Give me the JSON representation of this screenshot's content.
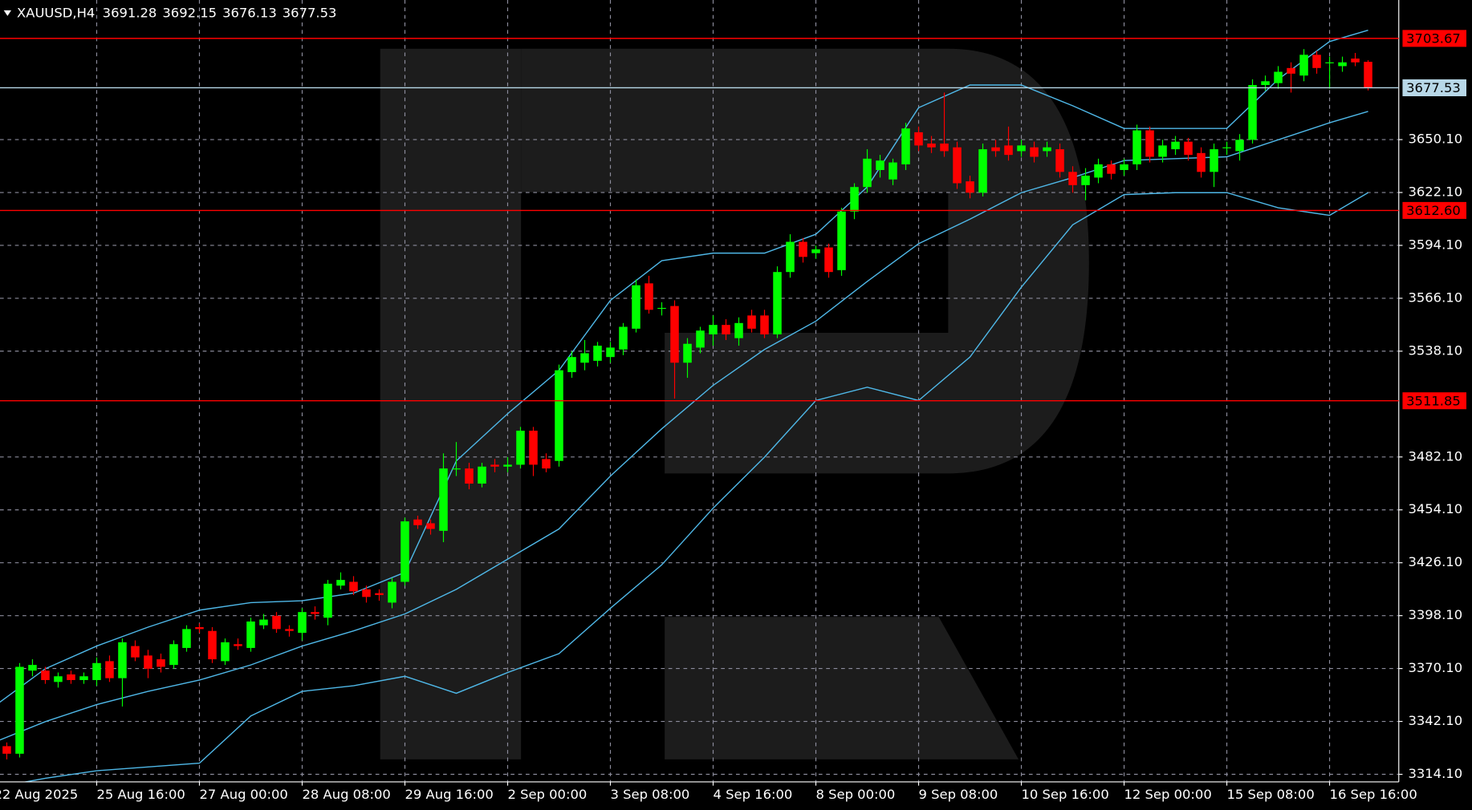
{
  "chart_data": {
    "type": "candlestick",
    "title": "XAUUSD,H4",
    "up_color": "#00ff00",
    "down_color": "#ff0000",
    "grid": true,
    "grid_color": "#8c8c9c",
    "ylim": [
      3310.1,
      3724.0
    ],
    "yticks": [
      {
        "value": 3314.1,
        "label": "3314.10"
      },
      {
        "value": 3342.1,
        "label": "3342.10"
      },
      {
        "value": 3370.1,
        "label": "3370.10"
      },
      {
        "value": 3398.1,
        "label": "3398.10"
      },
      {
        "value": 3426.1,
        "label": "3426.10"
      },
      {
        "value": 3454.1,
        "label": "3454.10"
      },
      {
        "value": 3482.1,
        "label": "3482.10"
      },
      {
        "value": 3538.1,
        "label": "3538.10"
      },
      {
        "value": 3566.1,
        "label": "3566.10"
      },
      {
        "value": 3594.1,
        "label": "3594.10"
      },
      {
        "value": 3622.1,
        "label": "3622.10"
      },
      {
        "value": 3650.1,
        "label": "3650.10"
      }
    ],
    "categories": [
      "22 Aug 2025",
      null,
      null,
      null,
      null,
      null,
      null,
      null,
      "25 Aug 16:00",
      null,
      null,
      null,
      null,
      null,
      null,
      null,
      "27 Aug 00:00",
      null,
      null,
      null,
      null,
      null,
      null,
      null,
      "28 Aug 08:00",
      null,
      null,
      null,
      null,
      null,
      null,
      null,
      "29 Aug 16:00",
      null,
      null,
      null,
      null,
      null,
      null,
      null,
      "2 Sep 00:00",
      null,
      null,
      null,
      null,
      null,
      null,
      null,
      "3 Sep 08:00",
      null,
      null,
      null,
      null,
      null,
      null,
      null,
      "4 Sep 16:00",
      null,
      null,
      null,
      null,
      null,
      null,
      null,
      "8 Sep 00:00",
      null,
      null,
      null,
      null,
      null,
      null,
      null,
      "9 Sep 08:00",
      null,
      null,
      null,
      null,
      null,
      null,
      null,
      "10 Sep 16:00",
      null,
      null,
      null,
      null,
      null,
      null,
      null,
      "12 Sep 00:00",
      null,
      null,
      null,
      null,
      null,
      null,
      null,
      "15 Sep 08:00",
      null,
      null,
      null,
      null,
      null,
      null,
      null,
      "16 Sep 16:00",
      null,
      null,
      null
    ],
    "ohlc": [
      null,
      [
        3329,
        3331,
        3322,
        3325
      ],
      [
        3325,
        3373,
        3323,
        3371
      ],
      [
        3369,
        3375,
        3366,
        3372
      ],
      [
        3369,
        3371,
        3362,
        3364
      ],
      [
        3363,
        3368,
        3360,
        3366
      ],
      [
        3367,
        3369,
        3362,
        3364
      ],
      [
        3364,
        3368,
        3362,
        3366
      ],
      [
        3364,
        3376,
        3361,
        3373
      ],
      [
        3374,
        3377,
        3363,
        3365
      ],
      [
        3365,
        3386,
        3350,
        3384
      ],
      [
        3382,
        3385,
        3374,
        3376
      ],
      [
        3377,
        3380,
        3365,
        3370
      ],
      [
        3375,
        3378,
        3368,
        3371
      ],
      [
        3372,
        3385,
        3370,
        3383
      ],
      [
        3381,
        3393,
        3379,
        3391
      ],
      [
        3392,
        3394,
        3389,
        3391
      ],
      [
        3390,
        3392,
        3373,
        3375
      ],
      [
        3374,
        3386,
        3372,
        3384
      ],
      [
        3383,
        3386,
        3380,
        3382
      ],
      [
        3381,
        3397,
        3379,
        3395
      ],
      [
        3393,
        3399,
        3391,
        3396
      ],
      [
        3398,
        3400,
        3389,
        3391
      ],
      [
        3391,
        3393,
        3387,
        3390
      ],
      [
        3389,
        3402,
        3385,
        3400
      ],
      [
        3400,
        3403,
        3396,
        3399
      ],
      [
        3397,
        3417,
        3393,
        3415
      ],
      [
        3414,
        3421,
        3412,
        3417
      ],
      [
        3416,
        3419,
        3409,
        3411
      ],
      [
        3412,
        3414,
        3405,
        3408
      ],
      [
        3410,
        3412,
        3406,
        3409
      ],
      [
        3405,
        3418,
        3402,
        3416
      ],
      [
        3416,
        3450,
        3414,
        3448
      ],
      [
        3449,
        3451,
        3444,
        3446
      ],
      [
        3447,
        3449,
        3441,
        3444
      ],
      [
        3443,
        3484,
        3437,
        3476
      ],
      [
        3476,
        3490,
        3472,
        3476
      ],
      [
        3476,
        3479,
        3465,
        3468
      ],
      [
        3468,
        3479,
        3466,
        3477
      ],
      [
        3478,
        3481,
        3474,
        3477
      ],
      [
        3477,
        3482,
        3474,
        3478
      ],
      [
        3478,
        3498,
        3476,
        3496
      ],
      [
        3496,
        3498,
        3472,
        3478
      ],
      [
        3481,
        3484,
        3474,
        3476
      ],
      [
        3480,
        3531,
        3477,
        3528
      ],
      [
        3527,
        3538,
        3524,
        3535
      ],
      [
        3532,
        3544,
        3528,
        3537
      ],
      [
        3533,
        3543,
        3530,
        3541
      ],
      [
        3535,
        3543,
        3532,
        3540
      ],
      [
        3539,
        3553,
        3536,
        3551
      ],
      [
        3550,
        3576,
        3548,
        3573
      ],
      [
        3574,
        3578,
        3558,
        3560
      ],
      [
        3561,
        3564,
        3557,
        3561
      ],
      [
        3562,
        3565,
        3513,
        3532
      ],
      [
        3532,
        3545,
        3524,
        3542
      ],
      [
        3540,
        3551,
        3537,
        3549
      ],
      [
        3547,
        3557,
        3541,
        3552
      ],
      [
        3552,
        3555,
        3544,
        3547
      ],
      [
        3545,
        3556,
        3541,
        3553
      ],
      [
        3557,
        3560,
        3548,
        3550
      ],
      [
        3557,
        3560,
        3545,
        3547
      ],
      [
        3547,
        3583,
        3545,
        3580
      ],
      [
        3580,
        3600,
        3577,
        3596
      ],
      [
        3596,
        3598,
        3585,
        3588
      ],
      [
        3590,
        3594,
        3587,
        3592
      ],
      [
        3593,
        3595,
        3577,
        3580
      ],
      [
        3581,
        3614,
        3578,
        3612
      ],
      [
        3612,
        3627,
        3608,
        3625
      ],
      [
        3625,
        3645,
        3622,
        3640
      ],
      [
        3634,
        3642,
        3630,
        3639
      ],
      [
        3629,
        3640,
        3626,
        3638
      ],
      [
        3637,
        3659,
        3634,
        3656
      ],
      [
        3654,
        3657,
        3644,
        3647
      ],
      [
        3648,
        3652,
        3643,
        3646
      ],
      [
        3648,
        3675,
        3641,
        3644
      ],
      [
        3646,
        3649,
        3624,
        3627
      ],
      [
        3628,
        3631,
        3619,
        3622
      ],
      [
        3622,
        3648,
        3620,
        3645
      ],
      [
        3646,
        3650,
        3641,
        3644
      ],
      [
        3647,
        3657,
        3639,
        3642
      ],
      [
        3644,
        3650,
        3641,
        3647
      ],
      [
        3646,
        3649,
        3638,
        3641
      ],
      [
        3644,
        3649,
        3641,
        3646
      ],
      [
        3645,
        3648,
        3630,
        3633
      ],
      [
        3633,
        3636,
        3622,
        3626
      ],
      [
        3626,
        3635,
        3618,
        3631
      ],
      [
        3630,
        3640,
        3627,
        3637
      ],
      [
        3637,
        3639,
        3629,
        3632
      ],
      [
        3634,
        3640,
        3631,
        3637
      ],
      [
        3637,
        3658,
        3634,
        3655
      ],
      [
        3655,
        3657,
        3638,
        3641
      ],
      [
        3641,
        3650,
        3638,
        3647
      ],
      [
        3645,
        3652,
        3642,
        3649
      ],
      [
        3649,
        3651,
        3639,
        3642
      ],
      [
        3643,
        3646,
        3630,
        3633
      ],
      [
        3633,
        3648,
        3625,
        3645
      ],
      [
        3646,
        3649,
        3642,
        3646
      ],
      [
        3644,
        3653,
        3639,
        3650
      ],
      [
        3650,
        3682,
        3648,
        3679
      ],
      [
        3679,
        3684,
        3676,
        3681
      ],
      [
        3680,
        3689,
        3677,
        3686
      ],
      [
        3688,
        3691,
        3675,
        3685
      ],
      [
        3684,
        3698,
        3681,
        3695
      ],
      [
        3695,
        3697,
        3685,
        3688
      ],
      [
        3691,
        3694,
        3677,
        3691
      ],
      [
        3689,
        3694,
        3686,
        3691
      ],
      [
        3693,
        3696,
        3689,
        3691
      ],
      [
        3691.28,
        3692.15,
        3676.13,
        3677.53
      ]
    ],
    "band_x": [
      0,
      4,
      8,
      12,
      16,
      20,
      24,
      28,
      32,
      36,
      40,
      44,
      48,
      52,
      56,
      60,
      64,
      68,
      72,
      76,
      80,
      84,
      88,
      92,
      96,
      100,
      104,
      107
    ],
    "bands": [
      {
        "color": "#4fb8e8",
        "values": [
          3350,
          3370,
          3382,
          3392,
          3401,
          3405,
          3406,
          3410,
          3421,
          3480,
          3505,
          3528,
          3565,
          3586,
          3590,
          3590,
          3600,
          3625,
          3667,
          3679,
          3679,
          3668,
          3656,
          3656,
          3656,
          3682,
          3702,
          3708
        ]
      },
      {
        "color": "#4fb8e8",
        "values": [
          3331,
          3342,
          3351,
          3358,
          3364,
          3372,
          3382,
          3390,
          3399,
          3412,
          3428,
          3444,
          3472,
          3497,
          3520,
          3539,
          3554,
          3575,
          3595,
          3608,
          3622,
          3630,
          3639,
          3640,
          3641,
          3650,
          3659,
          3665
        ]
      },
      {
        "color": "#4fb8e8",
        "values": [
          3307,
          3312,
          3316,
          3318,
          3320,
          3345,
          3358,
          3361,
          3366,
          3357,
          3368,
          3378,
          3402,
          3425,
          3455,
          3482,
          3512,
          3519,
          3512,
          3535,
          3572,
          3605,
          3621,
          3622,
          3622,
          3614,
          3610,
          3622
        ]
      }
    ],
    "levels": [
      {
        "value": 3703.67,
        "color": "#ff0000"
      },
      {
        "value": 3677.53,
        "color": "#b8d8e8"
      },
      {
        "value": 3612.6,
        "label": "3612.60",
        "color": "#ff0000"
      },
      {
        "value": 3511.85,
        "color": "#ff0000"
      }
    ]
  }
}
